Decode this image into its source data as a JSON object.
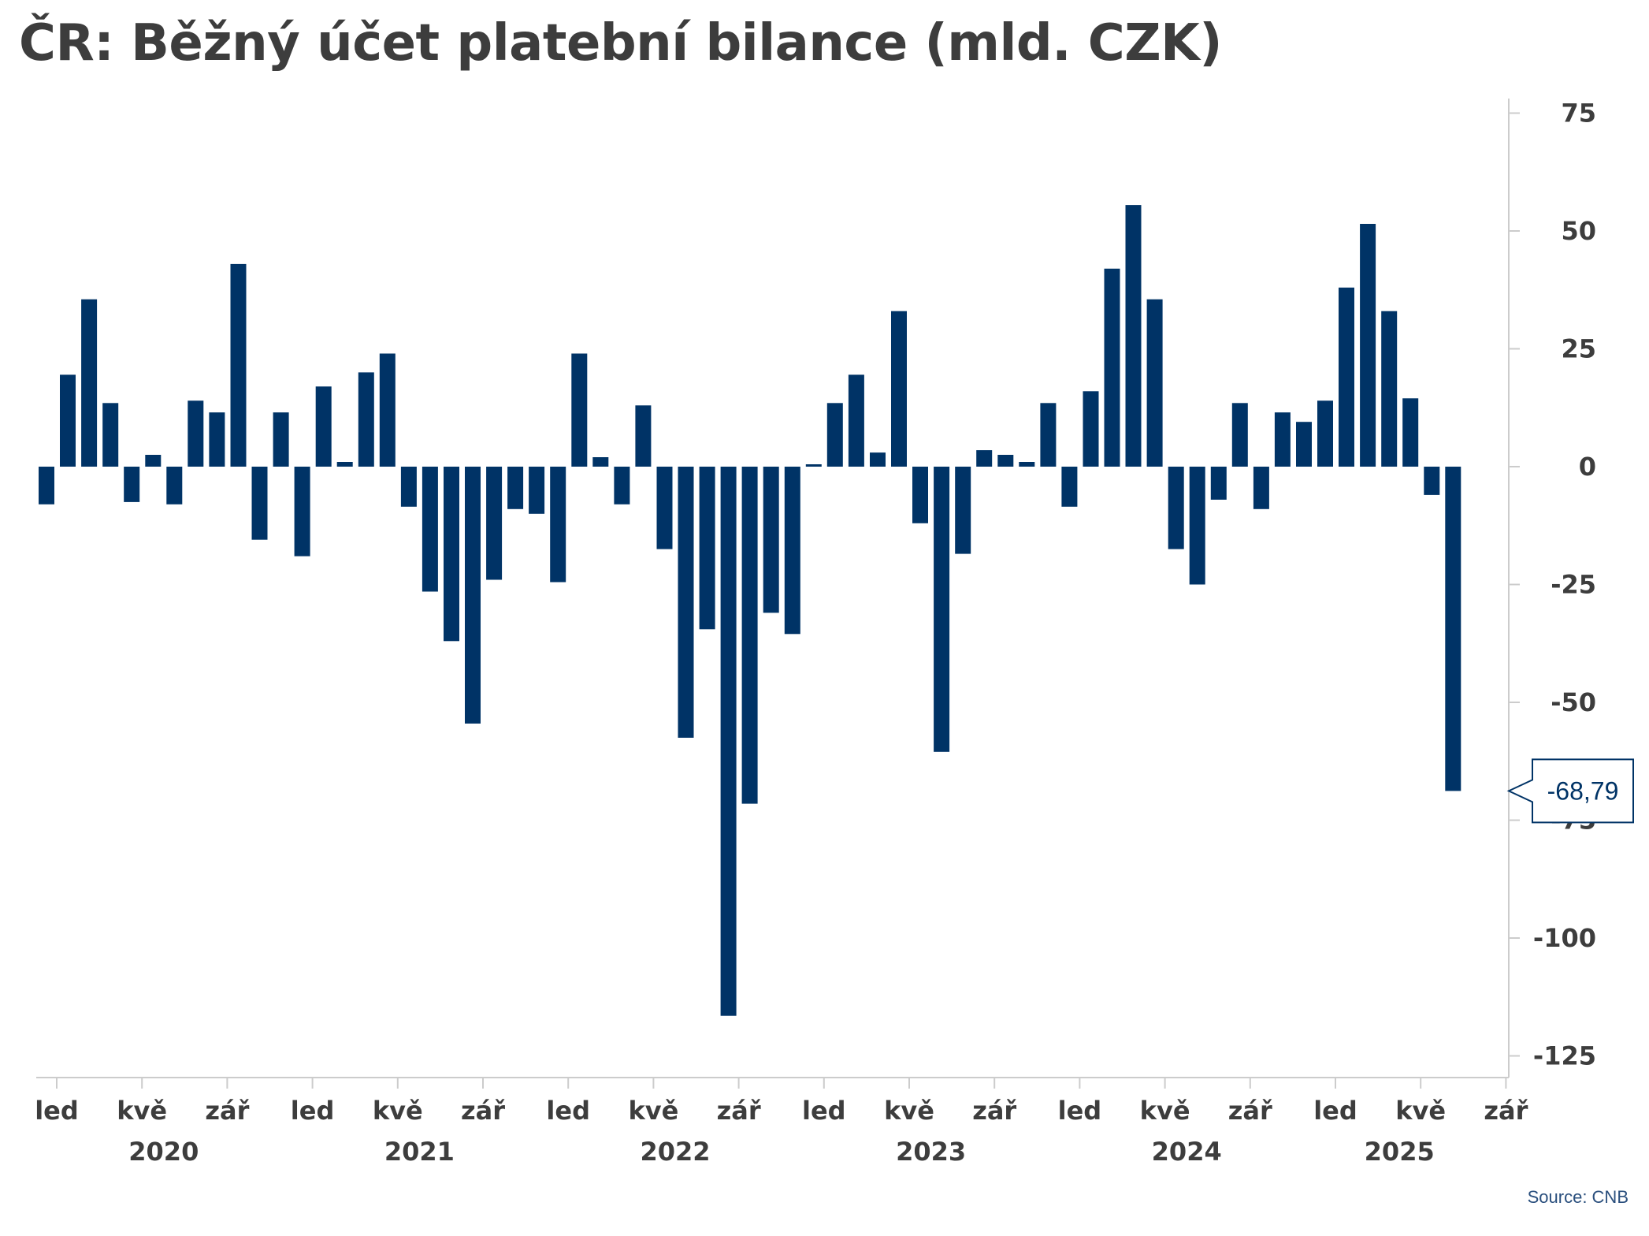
{
  "title": "ČR: Běžný účet platební bilance (mld. CZK)",
  "source": "Source: CNB",
  "colors": {
    "bar": "#003366",
    "text": "#3d3d3d",
    "axis": "#cccccc",
    "callout": "#003366"
  },
  "chart_data": {
    "type": "bar",
    "x_month_labels": [
      "led",
      "kvě",
      "zář",
      "led",
      "kvě",
      "zář",
      "led",
      "kvě",
      "zář",
      "led",
      "kvě",
      "zář",
      "led",
      "kvě",
      "zář",
      "led",
      "kvě",
      "zář"
    ],
    "x_year_labels": [
      "2020",
      "2021",
      "2022",
      "2023",
      "2024",
      "2025"
    ],
    "y_ticks": [
      "75",
      "50",
      "25",
      "0",
      "-25",
      "-50",
      "-75",
      "-100",
      "-125"
    ],
    "ylim": [
      -130,
      80
    ],
    "y_axis_position": "right",
    "grid": false,
    "series": [
      {
        "values": [
          -8,
          19.5,
          35.5,
          13.5,
          -7.5,
          2.5,
          -8,
          14,
          11.5,
          43,
          -15.5,
          11.5,
          -19,
          17,
          1,
          20,
          24,
          -8.5,
          -26.5,
          -37,
          -54.5,
          -24,
          -9,
          -10,
          -24.5,
          24,
          2,
          -8,
          13,
          -17.5,
          -57.5,
          -34.5,
          -116.5,
          -71.5,
          -31,
          -35.5,
          0.5,
          13.5,
          19.5,
          3,
          33,
          -12,
          -60.5,
          -18.5,
          3.5,
          2.5,
          1,
          13.5,
          -8.5,
          16,
          42,
          55.5,
          35.5,
          -17.5,
          -25,
          -7,
          13.5,
          -9,
          11.5,
          9.5,
          14,
          38,
          51.5,
          33,
          14.5,
          -6,
          -68.79
        ]
      }
    ],
    "last_value_label": "-68,79"
  }
}
